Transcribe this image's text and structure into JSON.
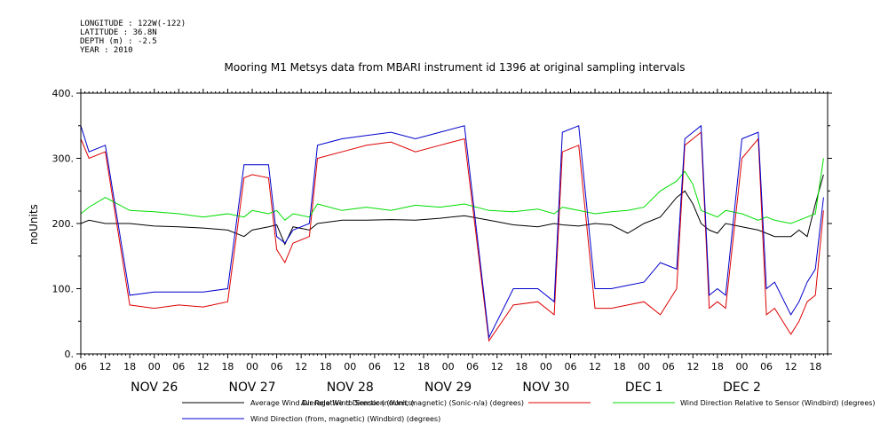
{
  "meta": {
    "longitude": "LONGITUDE : 122W(-122)",
    "latitude": "LATITUDE : 36.8N",
    "depth": "DEPTH (m) : -2.5",
    "year": "YEAR : 2010"
  },
  "chart_data": {
    "type": "line",
    "title": "Mooring M1 Metsys data from MBARI instrument id 1396 at original sampling intervals",
    "ylabel": "noUnits",
    "xlabel": "",
    "ylim": [
      0,
      400
    ],
    "yticks": [
      0,
      100,
      200,
      300,
      400
    ],
    "xlim": [
      -18,
      165
    ],
    "x_unit": "hours from NOV 26 00:00 (2010)",
    "hour_tick_labels": [
      "00",
      "06",
      "12",
      "18"
    ],
    "day_labels": [
      "NOV 26",
      "NOV 27",
      "NOV 28",
      "NOV 29",
      "NOV 30",
      "DEC  1",
      "DEC  2"
    ],
    "legend_placement": "bottom",
    "series": [
      {
        "name": "Average Wind Dir Relative to Sensor (noUnits)",
        "color": "#000000",
        "x": [
          -18,
          -16,
          -12,
          -6,
          0,
          6,
          12,
          18,
          22,
          24,
          28,
          30,
          32,
          34,
          38,
          40,
          46,
          52,
          58,
          64,
          70,
          76,
          82,
          88,
          94,
          98,
          100,
          104,
          108,
          112,
          116,
          120,
          124,
          128,
          130,
          132,
          134,
          136,
          138,
          140,
          144,
          148,
          150,
          152,
          156,
          158,
          160,
          162,
          164
        ],
        "y": [
          200,
          205,
          200,
          200,
          196,
          195,
          193,
          190,
          180,
          190,
          195,
          198,
          168,
          195,
          190,
          200,
          205,
          205,
          206,
          205,
          208,
          212,
          205,
          198,
          195,
          200,
          198,
          196,
          200,
          198,
          185,
          200,
          210,
          240,
          250,
          230,
          200,
          190,
          185,
          200,
          195,
          190,
          185,
          180,
          180,
          190,
          180,
          230,
          275
        ]
      },
      {
        "name": "Average Wind Direction (from, magnetic) (Sonic-n/a) (degrees)",
        "color": "#dd0000",
        "x": [
          -18,
          -16,
          -12,
          -6,
          0,
          6,
          12,
          18,
          22,
          24,
          28,
          30,
          32,
          34,
          38,
          40,
          46,
          52,
          58,
          64,
          70,
          76,
          82,
          88,
          94,
          98,
          100,
          104,
          108,
          112,
          116,
          120,
          124,
          128,
          130,
          132,
          134,
          136,
          138,
          140,
          144,
          148,
          150,
          152,
          156,
          158,
          160,
          162,
          164
        ],
        "y": [
          330,
          300,
          310,
          75,
          70,
          75,
          72,
          80,
          270,
          275,
          270,
          160,
          140,
          170,
          180,
          300,
          310,
          320,
          325,
          310,
          320,
          330,
          20,
          75,
          80,
          60,
          310,
          320,
          70,
          70,
          75,
          80,
          60,
          100,
          320,
          330,
          340,
          70,
          80,
          70,
          300,
          330,
          60,
          70,
          30,
          50,
          80,
          90,
          220
        ]
      },
      {
        "name": "Wind Direction Relative to Sensor (Windbird) (degrees)",
        "color": "#00dd00",
        "x": [
          -18,
          -16,
          -12,
          -6,
          0,
          6,
          12,
          18,
          22,
          24,
          28,
          30,
          32,
          34,
          38,
          40,
          46,
          52,
          58,
          64,
          70,
          76,
          82,
          88,
          94,
          98,
          100,
          104,
          108,
          112,
          116,
          120,
          124,
          128,
          130,
          132,
          134,
          136,
          138,
          140,
          144,
          148,
          150,
          152,
          156,
          158,
          160,
          162,
          164
        ],
        "y": [
          215,
          225,
          240,
          220,
          218,
          215,
          210,
          215,
          210,
          220,
          215,
          220,
          205,
          215,
          210,
          230,
          220,
          225,
          220,
          228,
          225,
          230,
          220,
          218,
          222,
          215,
          225,
          220,
          215,
          218,
          220,
          225,
          250,
          265,
          280,
          260,
          220,
          215,
          210,
          220,
          215,
          205,
          210,
          205,
          200,
          205,
          210,
          215,
          300
        ]
      },
      {
        "name": "Wind Direction (from, magnetic) (Windbird) (degrees)",
        "color": "#0000cc",
        "x": [
          -18,
          -16,
          -12,
          -6,
          0,
          6,
          12,
          18,
          22,
          24,
          28,
          30,
          32,
          34,
          38,
          40,
          46,
          52,
          58,
          64,
          70,
          76,
          82,
          88,
          94,
          98,
          100,
          104,
          108,
          112,
          116,
          120,
          124,
          128,
          130,
          132,
          134,
          136,
          138,
          140,
          144,
          148,
          150,
          152,
          156,
          158,
          160,
          162,
          164
        ],
        "y": [
          350,
          310,
          320,
          90,
          95,
          95,
          95,
          100,
          290,
          290,
          290,
          180,
          170,
          190,
          200,
          320,
          330,
          335,
          340,
          330,
          340,
          350,
          25,
          100,
          100,
          80,
          340,
          350,
          100,
          100,
          105,
          110,
          140,
          130,
          330,
          340,
          350,
          90,
          100,
          90,
          330,
          340,
          100,
          110,
          60,
          80,
          110,
          130,
          240
        ]
      }
    ]
  }
}
